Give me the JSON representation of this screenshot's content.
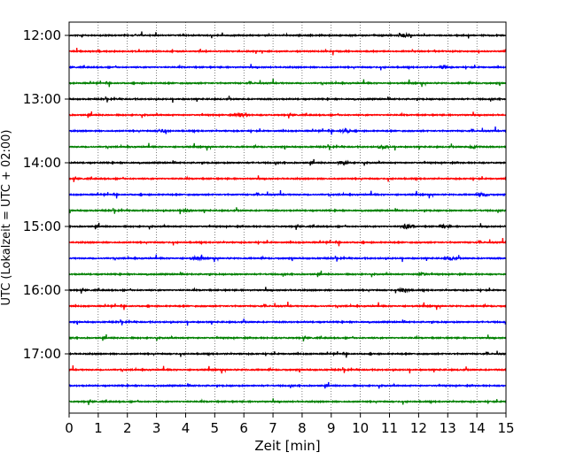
{
  "chart_data": {
    "type": "line",
    "title": "",
    "xlabel": "Zeit  [min]",
    "ylabel": "UTC (Lokalzeit = UTC + 02:00)",
    "xlim": [
      0,
      15
    ],
    "x_ticks": [
      "0",
      "1",
      "2",
      "3",
      "4",
      "5",
      "6",
      "7",
      "8",
      "9",
      "10",
      "11",
      "12",
      "13",
      "14",
      "15"
    ],
    "y_tick_labels": [
      "12:00",
      "13:00",
      "14:00",
      "15:00",
      "16:00",
      "17:00"
    ],
    "x_grid": "dotted",
    "trace_colors": [
      "#000000",
      "#ff0000",
      "#0000ff",
      "#008000"
    ],
    "traces": [
      {
        "start": "12:00",
        "color": "#000000",
        "bursts": [
          [
            11.5,
            2.2
          ]
        ]
      },
      {
        "start": "12:15",
        "color": "#ff0000",
        "bursts": []
      },
      {
        "start": "12:30",
        "color": "#0000ff",
        "bursts": [
          [
            12.9,
            1.8
          ]
        ]
      },
      {
        "start": "12:45",
        "color": "#008000",
        "bursts": []
      },
      {
        "start": "13:00",
        "color": "#000000",
        "bursts": []
      },
      {
        "start": "13:15",
        "color": "#ff0000",
        "bursts": [
          [
            5.9,
            2.4
          ]
        ]
      },
      {
        "start": "13:30",
        "color": "#0000ff",
        "bursts": [
          [
            3.2,
            2.0
          ],
          [
            9.5,
            2.4
          ]
        ]
      },
      {
        "start": "13:45",
        "color": "#008000",
        "bursts": [
          [
            10.8,
            2.0
          ],
          [
            13.9,
            1.8
          ]
        ]
      },
      {
        "start": "14:00",
        "color": "#000000",
        "bursts": [
          [
            9.4,
            2.6
          ]
        ]
      },
      {
        "start": "14:15",
        "color": "#ff0000",
        "bursts": []
      },
      {
        "start": "14:30",
        "color": "#0000ff",
        "bursts": [
          [
            14.2,
            2.2
          ]
        ]
      },
      {
        "start": "14:45",
        "color": "#008000",
        "bursts": [
          [
            4.0,
            1.8
          ]
        ]
      },
      {
        "start": "15:00",
        "color": "#000000",
        "bursts": [
          [
            11.6,
            3.0
          ],
          [
            12.9,
            1.8
          ]
        ]
      },
      {
        "start": "15:15",
        "color": "#ff0000",
        "bursts": []
      },
      {
        "start": "15:30",
        "color": "#0000ff",
        "bursts": [
          [
            4.4,
            2.2
          ],
          [
            13.1,
            1.8
          ]
        ]
      },
      {
        "start": "15:45",
        "color": "#008000",
        "bursts": [
          [
            12.1,
            1.8
          ]
        ]
      },
      {
        "start": "16:00",
        "color": "#000000",
        "bursts": [
          [
            11.5,
            2.6
          ]
        ]
      },
      {
        "start": "16:15",
        "color": "#ff0000",
        "bursts": []
      },
      {
        "start": "16:30",
        "color": "#0000ff",
        "bursts": []
      },
      {
        "start": "16:45",
        "color": "#008000",
        "bursts": []
      },
      {
        "start": "17:00",
        "color": "#000000",
        "bursts": []
      },
      {
        "start": "17:15",
        "color": "#ff0000",
        "bursts": []
      },
      {
        "start": "17:30",
        "color": "#0000ff",
        "bursts": []
      },
      {
        "start": "17:45",
        "color": "#008000",
        "bursts": []
      }
    ]
  }
}
